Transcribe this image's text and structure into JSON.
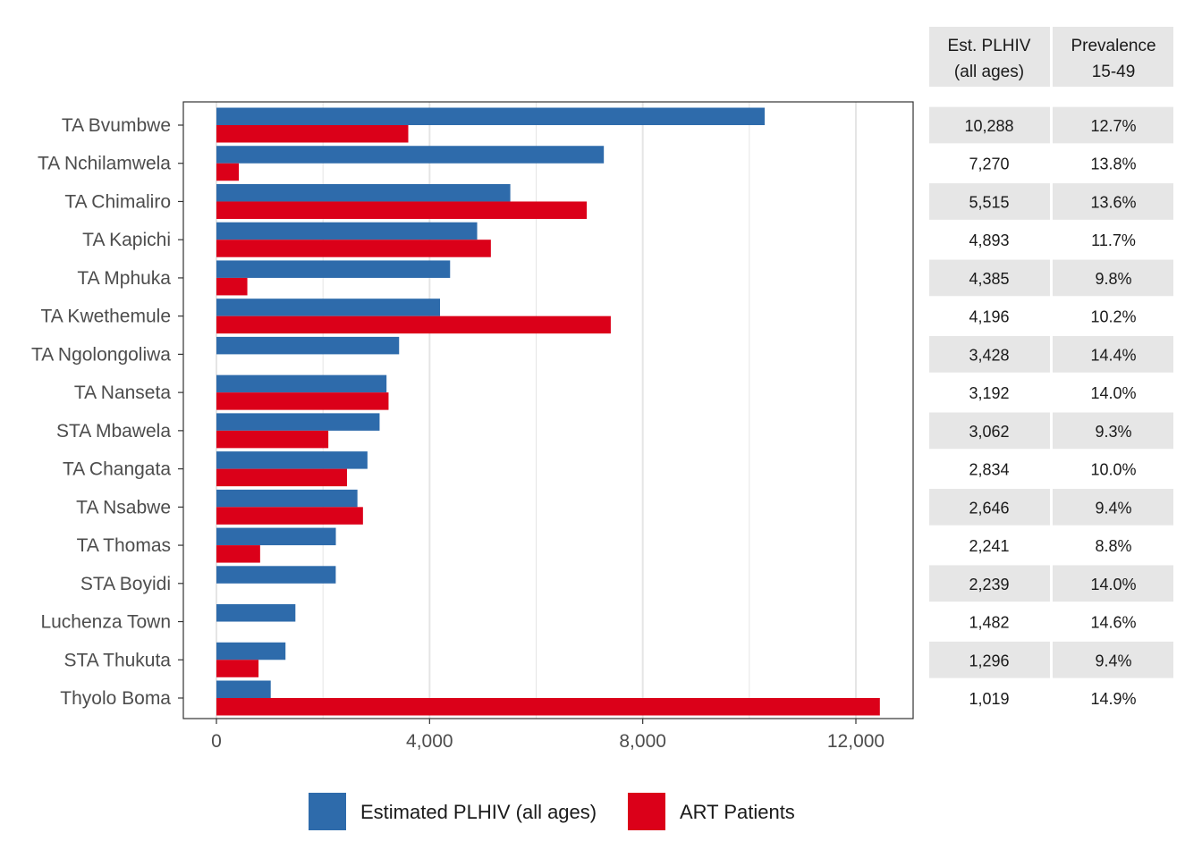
{
  "colors": {
    "plhiv": "#2e6bab",
    "art": "#db0019",
    "grid": "#e5e5e5",
    "panel_border": "#333333",
    "table_band": "#e6e6e6"
  },
  "table": {
    "headers": [
      [
        "Est. PLHIV",
        "(all ages)"
      ],
      [
        "Prevalence",
        "15-49"
      ]
    ],
    "rows": [
      {
        "plhiv": "10,288",
        "prevalence": "12.7%"
      },
      {
        "plhiv": "7,270",
        "prevalence": "13.8%"
      },
      {
        "plhiv": "5,515",
        "prevalence": "13.6%"
      },
      {
        "plhiv": "4,893",
        "prevalence": "11.7%"
      },
      {
        "plhiv": "4,385",
        "prevalence": "9.8%"
      },
      {
        "plhiv": "4,196",
        "prevalence": "10.2%"
      },
      {
        "plhiv": "3,428",
        "prevalence": "14.4%"
      },
      {
        "plhiv": "3,192",
        "prevalence": "14.0%"
      },
      {
        "plhiv": "3,062",
        "prevalence": "9.3%"
      },
      {
        "plhiv": "2,834",
        "prevalence": "10.0%"
      },
      {
        "plhiv": "2,646",
        "prevalence": "9.4%"
      },
      {
        "plhiv": "2,241",
        "prevalence": "8.8%"
      },
      {
        "plhiv": "2,239",
        "prevalence": "14.0%"
      },
      {
        "plhiv": "1,482",
        "prevalence": "14.6%"
      },
      {
        "plhiv": "1,296",
        "prevalence": "9.4%"
      },
      {
        "plhiv": "1,019",
        "prevalence": "14.9%"
      }
    ]
  },
  "chart_data": {
    "type": "bar",
    "orientation": "horizontal",
    "categories": [
      "TA Bvumbwe",
      "TA Nchilamwela",
      "TA Chimaliro",
      "TA Kapichi",
      "TA Mphuka",
      "TA Kwethemule",
      "TA Ngolongoliwa",
      "TA Nanseta",
      "STA Mbawela",
      "TA Changata",
      "TA Nsabwe",
      "TA Thomas",
      "STA Boyidi",
      "Luchenza Town",
      "STA Thukuta",
      "Thyolo Boma"
    ],
    "series": [
      {
        "name": "Estimated PLHIV (all ages)",
        "values": [
          10288,
          7270,
          5515,
          4893,
          4385,
          4196,
          3428,
          3192,
          3062,
          2834,
          2646,
          2241,
          2239,
          1482,
          1296,
          1019
        ]
      },
      {
        "name": "ART Patients",
        "values": [
          3600,
          420,
          6950,
          5150,
          580,
          7400,
          null,
          3230,
          2100,
          2450,
          2750,
          820,
          null,
          null,
          790,
          12450
        ]
      }
    ],
    "xlim": [
      -600,
      13100
    ],
    "x_ticks": [
      0,
      4000,
      8000,
      12000
    ],
    "x_tick_labels": [
      "0",
      "4,000",
      "8,000",
      "12,000"
    ],
    "grid": true,
    "legend_position": "bottom",
    "title": "",
    "xlabel": "",
    "ylabel": ""
  }
}
